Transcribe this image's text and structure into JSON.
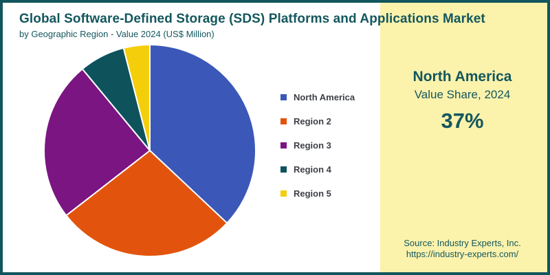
{
  "header": {
    "title": "Global Software-Defined Storage (SDS) Platforms and Applications Market",
    "subtitle": "by Geographic Region - Value 2024 (US$ Million)"
  },
  "chart_data": {
    "type": "pie",
    "title": "Global Software-Defined Storage (SDS) Platforms and Applications Market",
    "subtitle": "by Geographic Region - Value 2024 (US$ Million)",
    "categories": [
      "North America",
      "Region 2",
      "Region 3",
      "Region 4",
      "Region 5"
    ],
    "values": [
      37,
      27.5,
      24.5,
      7,
      4
    ],
    "unit": "percent",
    "colors": [
      "#3B57B8",
      "#E2540D",
      "#7B1582",
      "#0E525C",
      "#F5CE0B"
    ],
    "start_angle_deg": 0,
    "direction": "clockwise",
    "slice_gap_color": "#FFFFFF",
    "legend_position": "right"
  },
  "highlight_panel": {
    "region": "North America",
    "label": "Value Share, 2024",
    "value": "37%",
    "background": "#FBF2AC",
    "text_color": "#14575D"
  },
  "source": {
    "line1": "Source: Industry Experts, Inc.",
    "line2": "https://industry-experts.com/"
  },
  "frame": {
    "border_color": "#12555C",
    "background": "#FFFFFF"
  }
}
